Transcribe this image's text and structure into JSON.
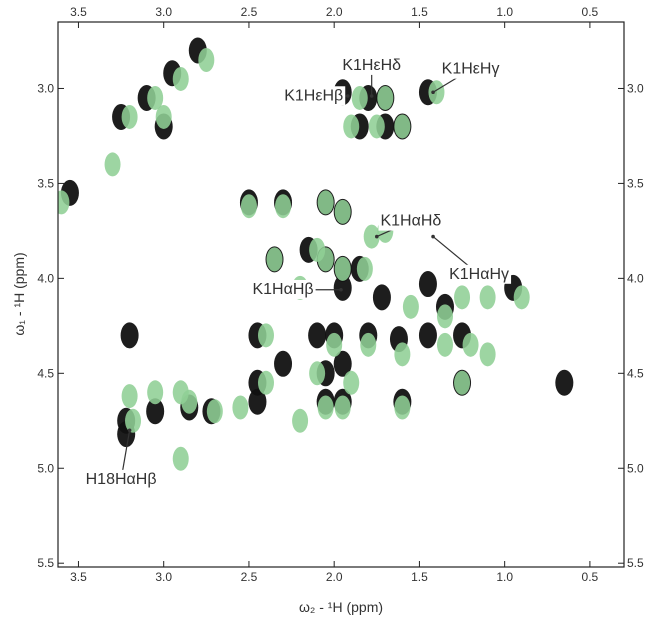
{
  "chart_data": {
    "type": "scatter",
    "subtype": "2D NMR spectrum (TOCSY) overlay",
    "xlabel": "ω₂ - ¹H  (ppm)",
    "ylabel": "ω₁ - ¹H  (ppm)",
    "xlim": [
      3.62,
      0.3
    ],
    "ylim": [
      2.65,
      5.52
    ],
    "x_reversed": true,
    "y_reversed": true,
    "xticks": [
      3.5,
      3.0,
      2.5,
      2.0,
      1.5,
      1.0,
      0.5
    ],
    "xtick_labels": [
      "3.5",
      "3.0",
      "2.5",
      "2.0",
      "1.5",
      "1.0",
      "0.5"
    ],
    "yticks": [
      3.0,
      3.5,
      4.0,
      4.5,
      5.0,
      5.5
    ],
    "ytick_labels": [
      "3.0",
      "3.5",
      "4.0",
      "4.5",
      "5.0",
      "5.5"
    ],
    "colors": {
      "black_spectrum": "#111111",
      "green_spectrum": "#8fcf95"
    },
    "series": [
      {
        "color": "#111111",
        "points": [
          [
            3.25,
            3.15
          ],
          [
            3.1,
            3.05
          ],
          [
            2.95,
            2.92
          ],
          [
            2.8,
            2.8
          ],
          [
            3.0,
            3.2
          ],
          [
            3.55,
            3.55
          ],
          [
            2.5,
            3.6
          ],
          [
            2.3,
            3.6
          ],
          [
            2.05,
            3.6
          ],
          [
            1.95,
            3.65
          ],
          [
            2.35,
            3.9
          ],
          [
            2.15,
            3.85
          ],
          [
            2.05,
            3.9
          ],
          [
            1.95,
            3.95
          ],
          [
            1.85,
            3.95
          ],
          [
            1.95,
            3.02
          ],
          [
            1.8,
            3.05
          ],
          [
            1.7,
            3.05
          ],
          [
            1.45,
            3.02
          ],
          [
            1.85,
            3.2
          ],
          [
            1.7,
            3.2
          ],
          [
            1.6,
            3.2
          ],
          [
            1.95,
            4.05
          ],
          [
            1.72,
            4.1
          ],
          [
            1.45,
            4.03
          ],
          [
            1.35,
            4.15
          ],
          [
            0.95,
            4.05
          ],
          [
            1.25,
            4.3
          ],
          [
            2.45,
            4.3
          ],
          [
            2.1,
            4.3
          ],
          [
            2.0,
            4.3
          ],
          [
            1.8,
            4.3
          ],
          [
            1.62,
            4.32
          ],
          [
            1.45,
            4.3
          ],
          [
            3.2,
            4.3
          ],
          [
            2.45,
            4.55
          ],
          [
            2.3,
            4.45
          ],
          [
            2.05,
            4.5
          ],
          [
            1.95,
            4.45
          ],
          [
            1.25,
            4.55
          ],
          [
            2.45,
            4.65
          ],
          [
            2.05,
            4.65
          ],
          [
            1.95,
            4.65
          ],
          [
            1.6,
            4.65
          ],
          [
            3.22,
            4.75
          ],
          [
            3.05,
            4.7
          ],
          [
            2.85,
            4.68
          ],
          [
            2.72,
            4.7
          ],
          [
            3.22,
            4.82
          ],
          [
            0.65,
            4.55
          ]
        ]
      },
      {
        "color": "#8fcf95",
        "points": [
          [
            3.2,
            3.15
          ],
          [
            3.05,
            3.05
          ],
          [
            2.9,
            2.95
          ],
          [
            2.75,
            2.85
          ],
          [
            3.0,
            3.15
          ],
          [
            3.3,
            3.4
          ],
          [
            3.6,
            3.6
          ],
          [
            2.5,
            3.62
          ],
          [
            2.3,
            3.62
          ],
          [
            2.05,
            3.6
          ],
          [
            1.95,
            3.65
          ],
          [
            2.35,
            3.9
          ],
          [
            2.1,
            3.85
          ],
          [
            2.05,
            3.9
          ],
          [
            1.95,
            3.95
          ],
          [
            1.82,
            3.95
          ],
          [
            1.78,
            3.78
          ],
          [
            1.7,
            3.75
          ],
          [
            1.85,
            3.05
          ],
          [
            1.7,
            3.05
          ],
          [
            1.4,
            3.02
          ],
          [
            1.75,
            3.2
          ],
          [
            1.6,
            3.2
          ],
          [
            1.9,
            3.2
          ],
          [
            2.2,
            4.05
          ],
          [
            1.55,
            4.15
          ],
          [
            1.35,
            4.2
          ],
          [
            1.25,
            4.1
          ],
          [
            1.1,
            4.1
          ],
          [
            0.9,
            4.1
          ],
          [
            1.35,
            4.35
          ],
          [
            1.2,
            4.35
          ],
          [
            1.1,
            4.4
          ],
          [
            2.4,
            4.3
          ],
          [
            2.0,
            4.35
          ],
          [
            1.8,
            4.35
          ],
          [
            1.6,
            4.4
          ],
          [
            2.4,
            4.55
          ],
          [
            2.1,
            4.5
          ],
          [
            1.9,
            4.55
          ],
          [
            2.2,
            4.75
          ],
          [
            1.25,
            4.55
          ],
          [
            2.05,
            4.68
          ],
          [
            1.95,
            4.68
          ],
          [
            1.6,
            4.68
          ],
          [
            3.2,
            4.62
          ],
          [
            3.05,
            4.6
          ],
          [
            2.85,
            4.65
          ],
          [
            2.7,
            4.7
          ],
          [
            2.55,
            4.68
          ],
          [
            3.18,
            4.75
          ],
          [
            2.9,
            4.95
          ],
          [
            2.9,
            4.6
          ]
        ]
      }
    ],
    "annotations": [
      {
        "text": "K1HεHβ",
        "label_xy": [
          2.12,
          3.04
        ],
        "target": [
          1.92,
          3.04
        ]
      },
      {
        "text": "K1HεHδ",
        "label_xy": [
          1.78,
          2.88
        ],
        "target": [
          1.78,
          3.04
        ]
      },
      {
        "text": "K1HεHγ",
        "label_xy": [
          1.2,
          2.9
        ],
        "target": [
          1.42,
          3.02
        ]
      },
      {
        "text": "K1HαHδ",
        "label_xy": [
          1.55,
          3.7
        ],
        "target": [
          1.75,
          3.78
        ]
      },
      {
        "text": "K1HαHβ",
        "label_xy": [
          2.3,
          4.06
        ],
        "target": [
          1.96,
          4.06
        ]
      },
      {
        "text": "K1HαHγ",
        "label_xy": [
          1.15,
          3.98
        ],
        "target": [
          1.42,
          3.78
        ]
      },
      {
        "text": "H18HαHβ",
        "label_xy": [
          3.25,
          5.06
        ],
        "target": [
          3.2,
          4.8
        ]
      }
    ]
  }
}
